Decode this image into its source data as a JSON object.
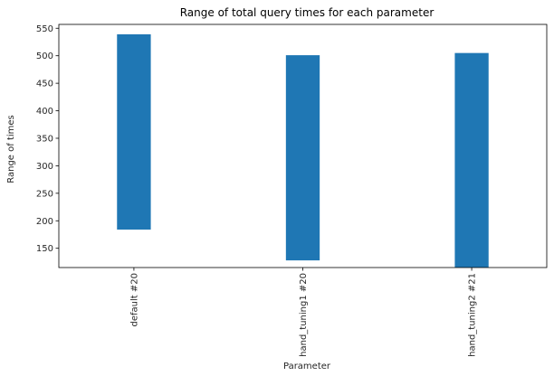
{
  "chart_data": {
    "type": "bar",
    "title": "Range of total query times for each parameter",
    "xlabel": "Parameter",
    "ylabel": "Range of times",
    "categories": [
      "default #20",
      "hand_tuning1 #20",
      "hand_tuning2 #21"
    ],
    "series": [
      {
        "lows": [
          184,
          128,
          115
        ],
        "highs": [
          539,
          501,
          505
        ]
      }
    ],
    "ylim": [
      115,
      557
    ],
    "yticks": [
      150,
      200,
      250,
      300,
      350,
      400,
      450,
      500,
      550
    ],
    "x_tick_rotation": "vertical",
    "grid": false,
    "legend": "none",
    "colors": {
      "bar": "#1f77b4",
      "axis": "#000000",
      "text": "#262626"
    }
  }
}
